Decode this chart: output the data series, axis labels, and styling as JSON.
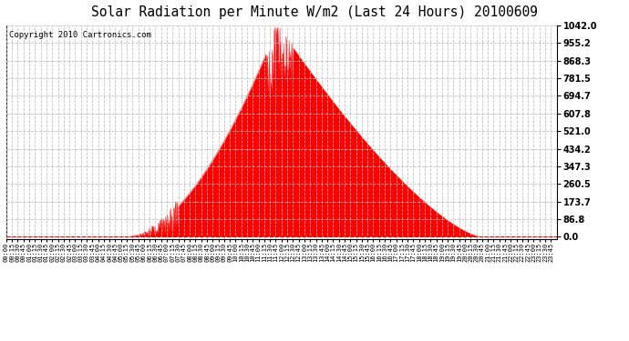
{
  "title": "Solar Radiation per Minute W/m2 (Last 24 Hours) 20100609",
  "copyright_text": "Copyright 2010 Cartronics.com",
  "y_ticks": [
    0.0,
    86.8,
    173.7,
    260.5,
    347.3,
    434.2,
    521.0,
    607.8,
    694.7,
    781.5,
    868.3,
    955.2,
    1042.0
  ],
  "y_max": 1042.0,
  "y_min": -10.0,
  "fill_color": "#ff0000",
  "line_color": "#ff0000",
  "bg_color": "#ffffff",
  "grid_color": "#bbbbbb",
  "dashed_zero_color": "#ff0000",
  "title_fontsize": 10.5,
  "copyright_fontsize": 6.5,
  "sunrise_min": 315,
  "peak_min": 710,
  "sunset_min": 1240,
  "peak_val": 1042.0
}
